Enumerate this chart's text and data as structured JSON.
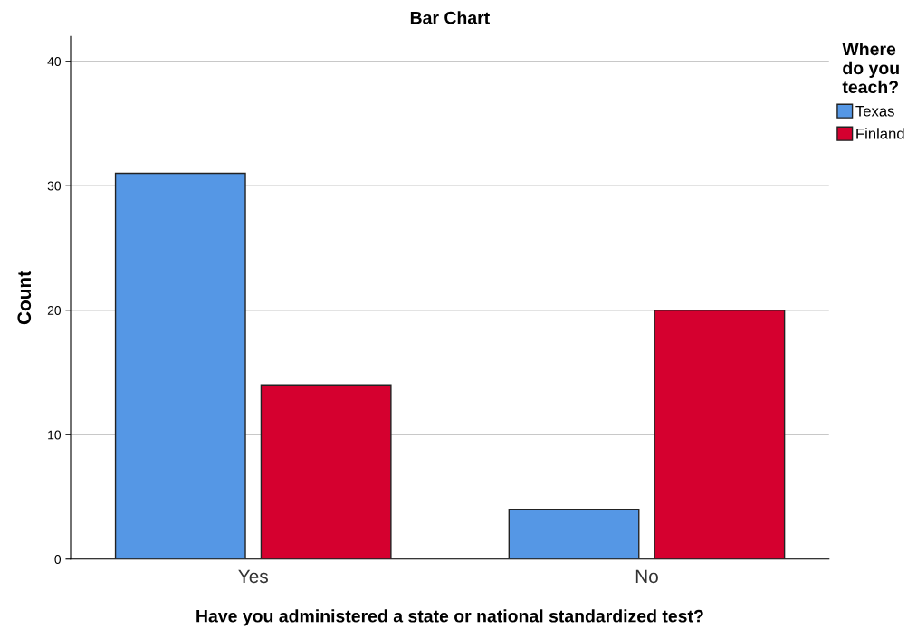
{
  "chart_data": {
    "type": "bar",
    "title": "Bar Chart",
    "xlabel": "Have you administered a state or national standardized test?",
    "ylabel": "Count",
    "legend_title": "Where\ndo you\nteach?",
    "categories": [
      "Yes",
      "No"
    ],
    "series": [
      {
        "name": "Texas",
        "color": "#5597e5",
        "values": [
          31,
          4
        ]
      },
      {
        "name": "Finland",
        "color": "#d5002f",
        "values": [
          14,
          20
        ]
      }
    ],
    "ylim": [
      0,
      42
    ],
    "yticks": [
      0,
      10,
      20,
      30,
      40
    ],
    "grid": "y",
    "legend": "top right"
  }
}
